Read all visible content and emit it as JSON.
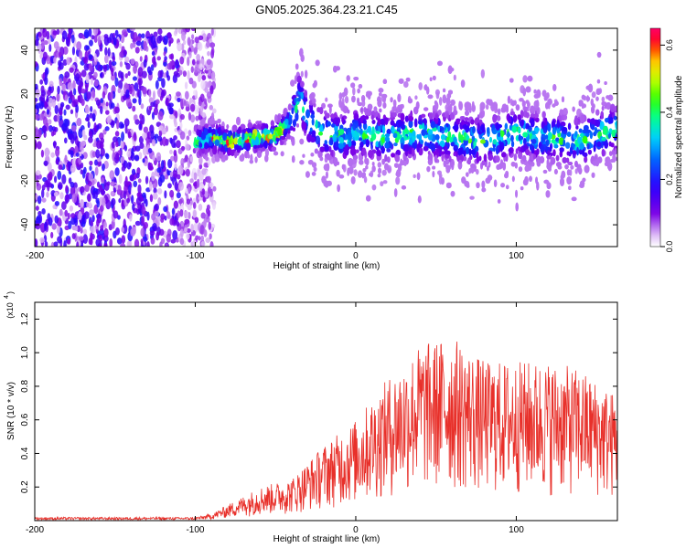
{
  "title": "GN05.2025.364.23.21.C45",
  "colorbar": {
    "label": "Normalized spectral amplitude",
    "range": [
      0,
      0.65
    ],
    "ticks": [
      0.0,
      0.2,
      0.4,
      0.6
    ],
    "tick_labels": [
      "0.0",
      "0.2",
      "0.4",
      "0.6"
    ],
    "colors": [
      "#ffffff",
      "#d9b3f5",
      "#7a00e6",
      "#2b00ff",
      "#0066ff",
      "#00ccff",
      "#00ff99",
      "#33ff00",
      "#ccff00",
      "#ffcc00",
      "#ff4400",
      "#ff0033",
      "#ff0066"
    ]
  },
  "chart_data": [
    {
      "type": "heatmap",
      "name": "spectrogram",
      "xlabel": "Height of straight line (km)",
      "ylabel": "Frequency (Hz)",
      "xlim": [
        -200,
        163
      ],
      "ylim": [
        -50,
        50
      ],
      "xticks": [
        -200,
        -100,
        0,
        100
      ],
      "xtick_labels": [
        "-200",
        "-100",
        "0",
        "100"
      ],
      "yticks": [
        -40,
        -20,
        0,
        20,
        40
      ],
      "ytick_labels": [
        "-40",
        "-20",
        "0",
        "20",
        "40"
      ],
      "value_label": "Normalized spectral amplitude",
      "noise_region": {
        "x_range": [
          -200,
          -100
        ],
        "amplitude": "low (0.05-0.2)"
      },
      "signal_band_center": [
        {
          "x": -100,
          "y": -2
        },
        {
          "x": -90,
          "y": 0
        },
        {
          "x": -80,
          "y": -2
        },
        {
          "x": -70,
          "y": -1
        },
        {
          "x": -60,
          "y": 0
        },
        {
          "x": -50,
          "y": 1
        },
        {
          "x": -40,
          "y": 8
        },
        {
          "x": -35,
          "y": 18
        },
        {
          "x": -30,
          "y": 8
        },
        {
          "x": -20,
          "y": 2
        },
        {
          "x": -10,
          "y": 0
        },
        {
          "x": 0,
          "y": 2
        },
        {
          "x": 20,
          "y": 0
        },
        {
          "x": 40,
          "y": 2
        },
        {
          "x": 60,
          "y": 0
        },
        {
          "x": 80,
          "y": -2
        },
        {
          "x": 100,
          "y": 2
        },
        {
          "x": 120,
          "y": 0
        },
        {
          "x": 140,
          "y": -2
        },
        {
          "x": 160,
          "y": 4
        }
      ]
    },
    {
      "type": "area",
      "name": "snr",
      "xlabel": "Height of straight line (km)",
      "ylabel": "SNR (10 * v/v)",
      "multiplier_label": "(x10",
      "multiplier_exp": "4",
      "xlim": [
        -200,
        163
      ],
      "ylim": [
        0,
        1.3
      ],
      "xticks": [
        -200,
        -100,
        0,
        100
      ],
      "xtick_labels": [
        "-200",
        "-100",
        "0",
        "100"
      ],
      "yticks": [
        0.2,
        0.4,
        0.6,
        0.8,
        1.0,
        1.2
      ],
      "ytick_labels": [
        "0.2",
        "0.4",
        "0.6",
        "0.8",
        "1.0",
        "1.2"
      ],
      "color": "#e8302a",
      "envelope": [
        {
          "x": -200,
          "y": 0.02
        },
        {
          "x": -100,
          "y": 0.02
        },
        {
          "x": -90,
          "y": 0.04
        },
        {
          "x": -75,
          "y": 0.12
        },
        {
          "x": -60,
          "y": 0.2
        },
        {
          "x": -40,
          "y": 0.25
        },
        {
          "x": -20,
          "y": 0.45
        },
        {
          "x": 0,
          "y": 0.6
        },
        {
          "x": 20,
          "y": 0.85
        },
        {
          "x": 40,
          "y": 1.05
        },
        {
          "x": 60,
          "y": 1.1
        },
        {
          "x": 80,
          "y": 0.95
        },
        {
          "x": 100,
          "y": 0.95
        },
        {
          "x": 120,
          "y": 0.95
        },
        {
          "x": 140,
          "y": 0.9
        },
        {
          "x": 163,
          "y": 0.75
        }
      ]
    }
  ]
}
